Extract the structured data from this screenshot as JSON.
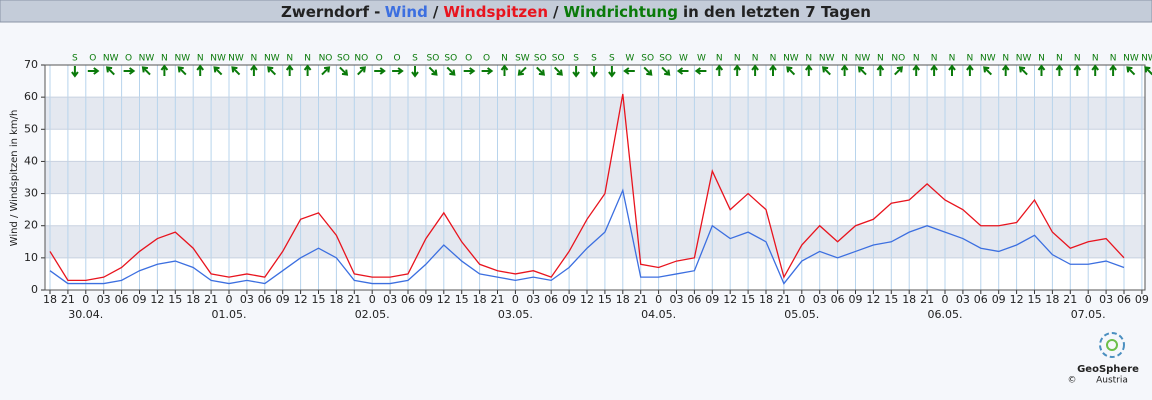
{
  "chart_data": {
    "type": "line",
    "title_prefix": "Zwerndorf -",
    "direction_name": "Windrichtung",
    "direction_color": "#0a7a0a",
    "title_suffix": "in den letzten 7 Tagen",
    "ylabel": "Wind / Windspitzen in km/h",
    "categories": [
      "18",
      "21",
      "0",
      "03",
      "06",
      "09",
      "12",
      "15",
      "18",
      "21",
      "0",
      "03",
      "06",
      "09",
      "12",
      "15",
      "18",
      "21",
      "0",
      "03",
      "06",
      "09",
      "12",
      "15",
      "18",
      "21",
      "0",
      "03",
      "06",
      "09",
      "12",
      "15",
      "18",
      "21",
      "0",
      "03",
      "06",
      "09",
      "12",
      "15",
      "18",
      "21",
      "0",
      "03",
      "06",
      "09",
      "12",
      "15",
      "18",
      "21",
      "0",
      "03",
      "06",
      "09",
      "12",
      "15",
      "18",
      "21",
      "0",
      "03",
      "06",
      "09"
    ],
    "date_labels": [
      null,
      null,
      "30.04.",
      null,
      null,
      null,
      null,
      null,
      null,
      null,
      "01.05.",
      null,
      null,
      null,
      null,
      null,
      null,
      null,
      "02.05.",
      null,
      null,
      null,
      null,
      null,
      null,
      null,
      "03.05.",
      null,
      null,
      null,
      null,
      null,
      null,
      null,
      "04.05.",
      null,
      null,
      null,
      null,
      null,
      null,
      null,
      "05.05.",
      null,
      null,
      null,
      null,
      null,
      null,
      null,
      "06.05.",
      null,
      null,
      null,
      null,
      null,
      null,
      null,
      "07.05.",
      null,
      null,
      null
    ],
    "series": [
      {
        "name": "Wind",
        "color": "#3c6fe0",
        "values": [
          6,
          2,
          2,
          2,
          3,
          6,
          8,
          9,
          7,
          3,
          2,
          3,
          2,
          6,
          10,
          13,
          10,
          3,
          2,
          2,
          3,
          8,
          14,
          9,
          5,
          4,
          3,
          4,
          3,
          7,
          13,
          18,
          31,
          4,
          4,
          5,
          6,
          20,
          16,
          18,
          15,
          2,
          9,
          12,
          10,
          12,
          14,
          15,
          18,
          20,
          18,
          16,
          13,
          12,
          14,
          17,
          11,
          8,
          8,
          9,
          7,
          null
        ]
      },
      {
        "name": "Windspitzen",
        "color": "#e8141e",
        "values": [
          12,
          3,
          3,
          4,
          7,
          12,
          16,
          18,
          13,
          5,
          4,
          5,
          4,
          12,
          22,
          24,
          17,
          5,
          4,
          4,
          5,
          16,
          24,
          15,
          8,
          6,
          5,
          6,
          4,
          12,
          22,
          30,
          61,
          8,
          7,
          9,
          10,
          37,
          25,
          30,
          25,
          4,
          14,
          20,
          15,
          20,
          22,
          27,
          28,
          33,
          28,
          25,
          20,
          20,
          21,
          28,
          18,
          13,
          15,
          16,
          10,
          null
        ]
      }
    ],
    "directions": [
      "S",
      "O",
      "NW",
      "O",
      "NW",
      "N",
      "NW",
      "N",
      "NW",
      "NW",
      "N",
      "NW",
      "N",
      "N",
      "NO",
      "SO",
      "NO",
      "O",
      "O",
      "S",
      "SO",
      "SO",
      "O",
      "O",
      "N",
      "SW",
      "SO",
      "SO",
      "S",
      "S",
      "S",
      "W",
      "SO",
      "SO",
      "W",
      "W",
      "N",
      "N",
      "N",
      "N",
      "NW",
      "N",
      "NW",
      "N",
      "NW",
      "N",
      "NO",
      "N",
      "N",
      "N",
      "N",
      "NW",
      "N",
      "NW",
      "N",
      "N",
      "N",
      "N",
      "N",
      "NW",
      "NW"
    ],
    "ylim": [
      0,
      70
    ],
    "yticks": [
      0,
      10,
      20,
      30,
      40,
      50,
      60,
      70
    ],
    "grid": true,
    "band_color": "#e4e8f0",
    "logo": {
      "name": "GeoSphere",
      "sub": "Austria",
      "copyright": "©"
    }
  }
}
